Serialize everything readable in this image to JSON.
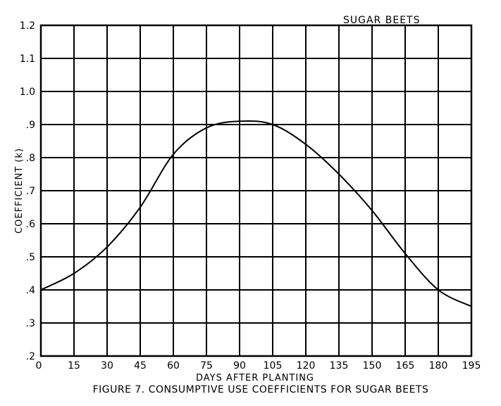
{
  "chart_data": {
    "type": "line",
    "title": "SUGAR BEETS",
    "caption": "FIGURE 7.  CONSUMPTIVE USE COEFFICIENTS FOR SUGAR BEETS",
    "xlabel": "DAYS  AFTER  PLANTING",
    "ylabel": "COEFFICIENT  (k)",
    "xlim": [
      0,
      195
    ],
    "ylim": [
      0.2,
      1.2
    ],
    "xticks": [
      0,
      15,
      30,
      45,
      60,
      75,
      90,
      105,
      120,
      135,
      150,
      165,
      180,
      195
    ],
    "xtick_labels": [
      "0",
      "15",
      "30",
      "45",
      "60",
      "75",
      "90",
      "105",
      "120",
      "135",
      "150",
      "165",
      "180",
      "195"
    ],
    "yticks": [
      0.2,
      0.3,
      0.4,
      0.5,
      0.6,
      0.7,
      0.8,
      0.9,
      1.0,
      1.1,
      1.2
    ],
    "ytick_labels": [
      ".2",
      ".3",
      ".4",
      ".5",
      ".6",
      ".7",
      ".8",
      ".9",
      "1.0",
      "1.1",
      "1.2"
    ],
    "grid": true,
    "series": [
      {
        "x": [
          0,
          15,
          30,
          45,
          60,
          75,
          90,
          105,
          120,
          135,
          150,
          165,
          180,
          195
        ],
        "y": [
          0.4,
          0.45,
          0.53,
          0.65,
          0.81,
          0.89,
          0.91,
          0.9,
          0.84,
          0.75,
          0.64,
          0.51,
          0.4,
          0.35
        ]
      }
    ]
  }
}
